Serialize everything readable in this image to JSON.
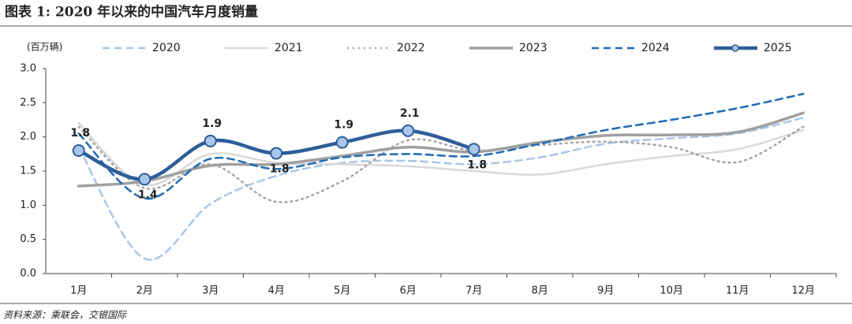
{
  "chart_data": {
    "type": "line",
    "title": "图表 1: 2020 年以来的中国汽车月度销量",
    "y_label": "(百万辆)",
    "source": "资料来源：乘联会，交银国际",
    "categories": [
      "1月",
      "2月",
      "3月",
      "4月",
      "5月",
      "6月",
      "7月",
      "8月",
      "9月",
      "10月",
      "11月",
      "12月"
    ],
    "ylim": [
      0,
      3
    ],
    "yticks": [
      {
        "value": 0,
        "label": "0.0"
      },
      0.5,
      {
        "value": 1,
        "label": "1.0"
      },
      1.5,
      {
        "value": 2,
        "label": "2.0"
      },
      2.5,
      {
        "value": 3,
        "label": "3.0"
      }
    ],
    "grid": false,
    "legend": "top",
    "series": [
      {
        "name": "2020",
        "color": "#a9c6e8",
        "style": "dashed",
        "values": [
          1.85,
          0.22,
          1.02,
          1.43,
          1.62,
          1.65,
          1.6,
          1.7,
          1.9,
          1.98,
          2.05,
          2.28
        ]
      },
      {
        "name": "2021",
        "color": "#d9d9d9",
        "style": "solid",
        "values": [
          2.2,
          1.3,
          1.75,
          1.62,
          1.6,
          1.57,
          1.5,
          1.45,
          1.6,
          1.72,
          1.82,
          2.1
        ]
      },
      {
        "name": "2022",
        "color": "#a6a6a6",
        "style": "dotted",
        "values": [
          2.15,
          1.25,
          1.6,
          1.05,
          1.35,
          1.95,
          1.8,
          1.88,
          1.93,
          1.85,
          1.63,
          2.15
        ]
      },
      {
        "name": "2023",
        "color": "#a0a0a0",
        "style": "bold",
        "values": [
          1.28,
          1.35,
          1.58,
          1.6,
          1.72,
          1.85,
          1.78,
          1.92,
          2.02,
          2.03,
          2.07,
          2.35
        ]
      },
      {
        "name": "2024",
        "color": "#1f6bb5",
        "style": "dashed",
        "values": [
          2.05,
          1.1,
          1.68,
          1.53,
          1.7,
          1.75,
          1.72,
          1.9,
          2.1,
          2.25,
          2.42,
          2.63
        ]
      },
      {
        "name": "2025",
        "color": "#2e5e99",
        "marker_color": "#a9c6e8",
        "style": "bold-marker",
        "values": [
          1.8,
          1.38,
          1.94,
          1.76,
          1.92,
          2.09,
          1.82,
          null,
          null,
          null,
          null,
          null
        ],
        "value_labels": [
          "1.8",
          "1.4",
          "1.9",
          "1.8",
          "1.9",
          "2.1",
          "1.8",
          null,
          null,
          null,
          null,
          null
        ]
      }
    ]
  }
}
